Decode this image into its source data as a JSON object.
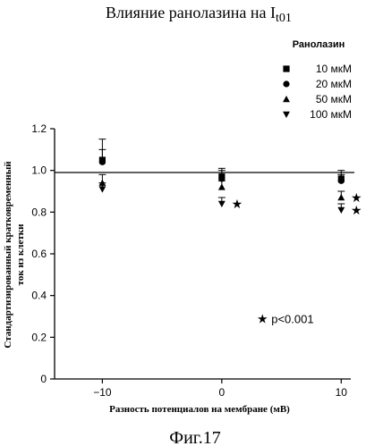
{
  "figure_label": "Фиг.17",
  "chart_data": {
    "type": "scatter",
    "title": "Влияние ранолазина на I",
    "title_subscript": "t01",
    "legend_title": "Ранолазин",
    "legend_position": "top-right",
    "xlabel": "Разность потенциалов на мембране (мВ)",
    "ylabel_line1": "Стандартизированный кратковременный",
    "ylabel_line2": "ток из клетки",
    "xlim": [
      -14,
      12
    ],
    "ylim": [
      0,
      1.2
    ],
    "x_ticks": [
      -10,
      0,
      10
    ],
    "x_tick_labels": [
      "−10",
      "0",
      "10"
    ],
    "y_ticks": [
      0,
      0.2,
      0.4,
      0.6,
      0.8,
      1.0,
      1.2
    ],
    "y_tick_labels": [
      "0",
      "0.2",
      "0.4",
      "0.6",
      "0.8",
      "1.0",
      "1.2"
    ],
    "grid": false,
    "reference_line_y": 0.99,
    "x": [
      -10,
      0,
      10
    ],
    "series": [
      {
        "name": "10 мкМ",
        "marker": "square",
        "values": [
          1.05,
          0.97,
          0.96
        ],
        "errors": [
          0.1,
          0.04,
          0.04
        ]
      },
      {
        "name": "20 мкМ",
        "marker": "circle",
        "values": [
          1.04,
          0.96,
          0.95
        ],
        "errors": [
          0.06,
          0.04,
          0.03
        ]
      },
      {
        "name": "50 мкМ",
        "marker": "triangle-up",
        "values": [
          0.94,
          0.92,
          0.87
        ],
        "errors": [
          0.04,
          0.03,
          0.03
        ]
      },
      {
        "name": "100 мкМ",
        "marker": "triangle-down",
        "values": [
          0.91,
          0.84,
          0.81
        ],
        "errors": [
          0.03,
          0.03,
          0.03
        ]
      }
    ],
    "significance_marks": [
      {
        "x": 0,
        "y": 0.84
      },
      {
        "x": 10,
        "y": 0.87
      },
      {
        "x": 10,
        "y": 0.81
      }
    ],
    "annotation": {
      "text": "p<0.001",
      "x": 4,
      "y": 0.29
    }
  }
}
